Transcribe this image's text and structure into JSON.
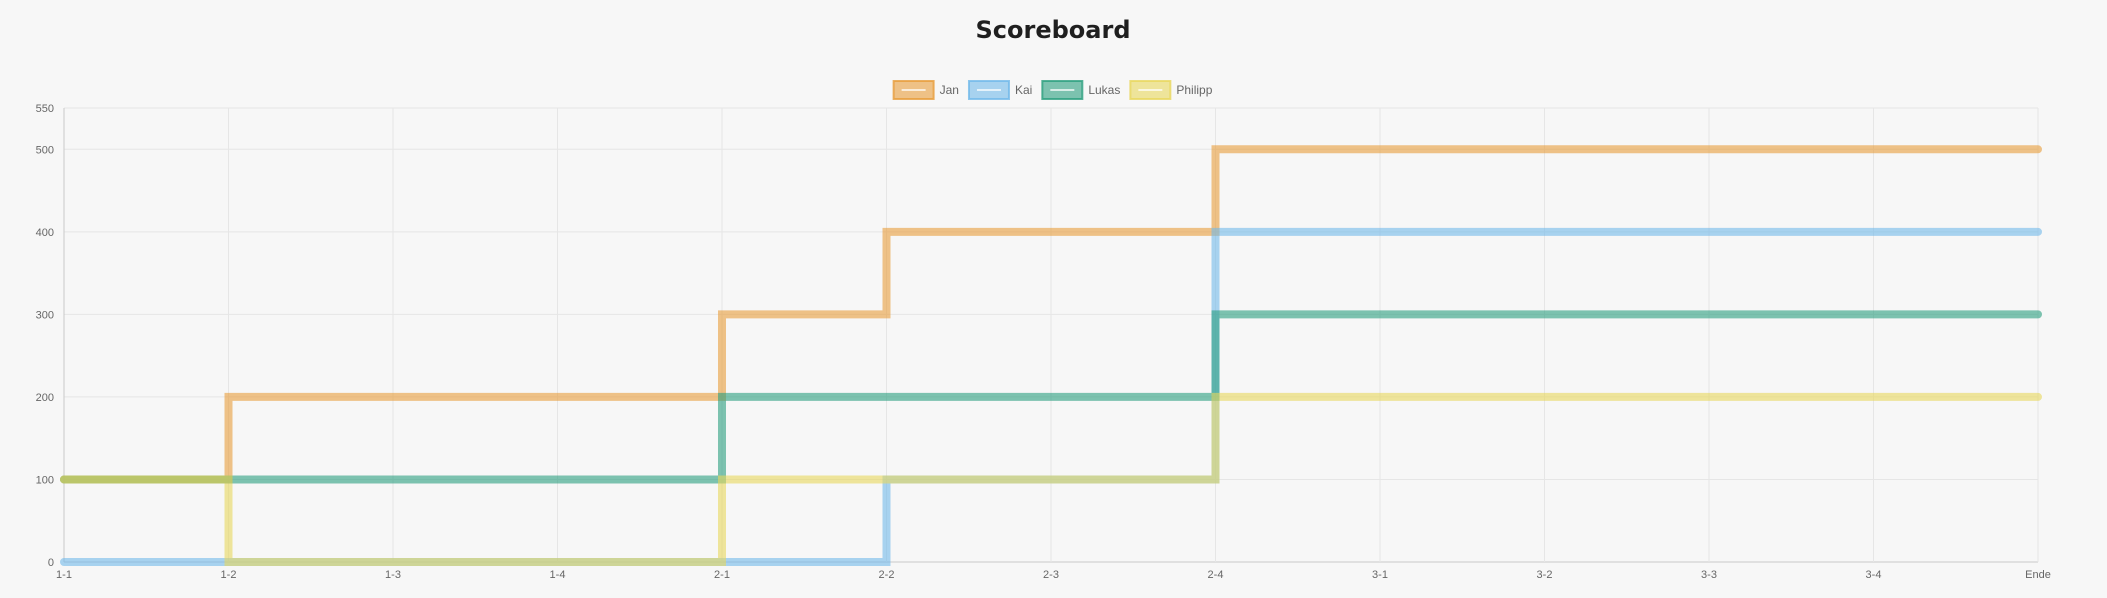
{
  "chart_data": {
    "type": "line",
    "title": "Scoreboard",
    "categories": [
      "1-1",
      "1-2",
      "1-3",
      "1-4",
      "2-1",
      "2-2",
      "2-3",
      "2-4",
      "3-1",
      "3-2",
      "3-3",
      "3-4",
      "Ende"
    ],
    "ylim": [
      0,
      550
    ],
    "yticks": [
      0,
      100,
      200,
      300,
      400,
      500,
      550
    ],
    "grid": true,
    "legend": "top-center",
    "series": [
      {
        "name": "Jan",
        "color": "#e79c3a",
        "values": [
          100,
          200,
          200,
          200,
          300,
          400,
          400,
          500,
          500,
          500,
          500,
          500,
          500
        ]
      },
      {
        "name": "Kai",
        "color": "#72b9ea",
        "values": [
          0,
          0,
          0,
          0,
          0,
          100,
          100,
          400,
          400,
          400,
          400,
          400,
          400
        ]
      },
      {
        "name": "Lukas",
        "color": "#2a9f7e",
        "values": [
          100,
          100,
          100,
          100,
          200,
          200,
          200,
          300,
          300,
          300,
          300,
          300,
          300
        ]
      },
      {
        "name": "Philipp",
        "color": "#e8d75c",
        "values": [
          100,
          0,
          0,
          0,
          100,
          100,
          100,
          200,
          200,
          200,
          200,
          200,
          200
        ]
      }
    ]
  }
}
